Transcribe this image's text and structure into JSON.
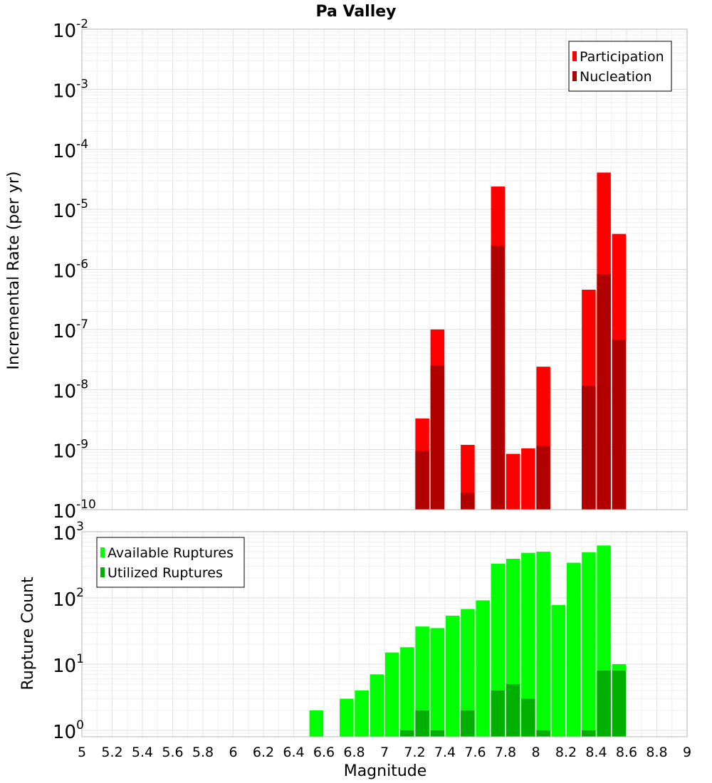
{
  "title": "Pa Valley",
  "xlabel": "Magnitude",
  "chart_data": [
    {
      "type": "bar",
      "title": "Pa Valley",
      "ylabel": "Incremental Rate (per yr)",
      "yscale": "log",
      "ylim": [
        1e-10,
        0.01
      ],
      "xlim": [
        5,
        9
      ],
      "grid": true,
      "legend": "top-right",
      "colors": {
        "Participation": "#ff0000",
        "Nucleation": "#b00000"
      },
      "x": [
        7.25,
        7.35,
        7.55,
        7.75,
        7.85,
        7.95,
        8.05,
        8.35,
        8.45,
        8.55
      ],
      "series": [
        {
          "name": "Participation",
          "values": [
            3.3e-09,
            1e-07,
            1.2e-09,
            2.4e-05,
            8.5e-10,
            1.05e-09,
            2.4e-08,
            4.6e-07,
            4.1e-05,
            3.9e-06
          ]
        },
        {
          "name": "Nucleation",
          "values": [
            9.5e-10,
            2.5e-08,
            1.9e-10,
            2.5e-06,
            null,
            null,
            1.15e-09,
            1.15e-08,
            8.4e-07,
            6.8e-08
          ]
        }
      ]
    },
    {
      "type": "bar",
      "ylabel": "Rupture Count",
      "xlabel": "Magnitude",
      "yscale": "log",
      "ylim": [
        0.8,
        1000
      ],
      "xlim": [
        5,
        9
      ],
      "grid": true,
      "legend": "top-left",
      "colors": {
        "Available Ruptures": "#00ff00",
        "Utilized Ruptures": "#00b000"
      },
      "x": [
        6.55,
        6.75,
        6.85,
        6.95,
        7.05,
        7.15,
        7.25,
        7.35,
        7.45,
        7.55,
        7.65,
        7.75,
        7.85,
        7.95,
        8.05,
        8.15,
        8.25,
        8.35,
        8.45,
        8.55
      ],
      "series": [
        {
          "name": "Available Ruptures",
          "values": [
            2,
            3,
            4,
            7,
            15,
            18,
            37,
            35,
            54,
            68,
            92,
            330,
            390,
            480,
            500,
            78,
            340,
            490,
            620,
            10
          ]
        },
        {
          "name": "Utilized Ruptures",
          "values": [
            null,
            null,
            null,
            null,
            null,
            1,
            2,
            1,
            null,
            2,
            null,
            4,
            5,
            3,
            1,
            null,
            null,
            1,
            8,
            8
          ]
        }
      ]
    }
  ],
  "xticks": [
    "5",
    "5.2",
    "5.4",
    "5.6",
    "5.8",
    "6",
    "6.2",
    "6.4",
    "6.6",
    "6.8",
    "7",
    "7.2",
    "7.4",
    "7.6",
    "7.8",
    "8",
    "8.2",
    "8.4",
    "8.6",
    "8.8",
    "9"
  ],
  "top_yticks": [
    {
      "base": "10",
      "exp": "-10"
    },
    {
      "base": "10",
      "exp": "-9"
    },
    {
      "base": "10",
      "exp": "-8"
    },
    {
      "base": "10",
      "exp": "-7"
    },
    {
      "base": "10",
      "exp": "-6"
    },
    {
      "base": "10",
      "exp": "-5"
    },
    {
      "base": "10",
      "exp": "-4"
    },
    {
      "base": "10",
      "exp": "-3"
    },
    {
      "base": "10",
      "exp": "-2"
    }
  ],
  "bottom_yticks": [
    {
      "base": "10",
      "exp": "0"
    },
    {
      "base": "10",
      "exp": "1"
    },
    {
      "base": "10",
      "exp": "2"
    },
    {
      "base": "10",
      "exp": "3"
    }
  ]
}
